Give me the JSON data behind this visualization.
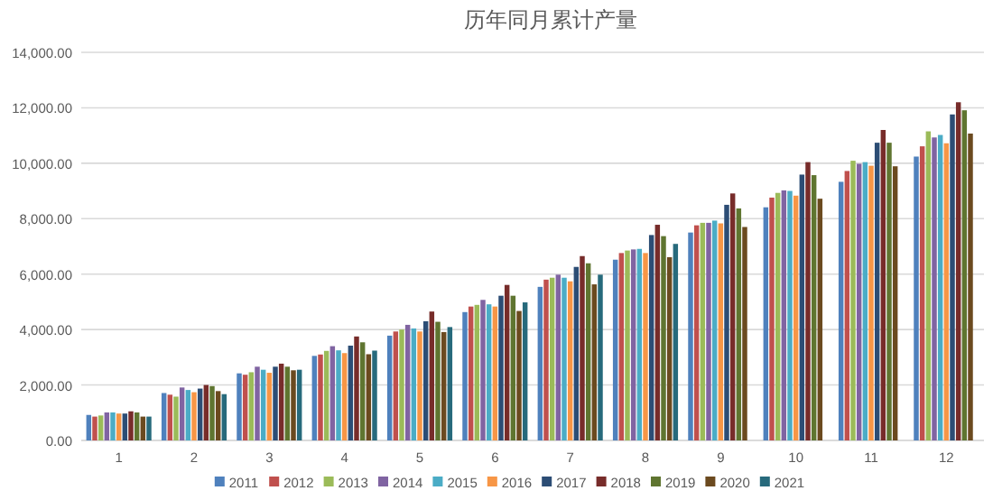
{
  "chart_data": {
    "type": "bar",
    "title": "历年同月累计产量",
    "categories": [
      "1",
      "2",
      "3",
      "4",
      "5",
      "6",
      "7",
      "8",
      "9",
      "10",
      "11",
      "12"
    ],
    "ylim": [
      0,
      14000
    ],
    "yticks": [
      {
        "value": 0,
        "label": "0.00"
      },
      {
        "value": 2000,
        "label": "2,000.00"
      },
      {
        "value": 4000,
        "label": "4,000.00"
      },
      {
        "value": 6000,
        "label": "6,000.00"
      },
      {
        "value": 8000,
        "label": "8,000.00"
      },
      {
        "value": 10000,
        "label": "10,000.00"
      },
      {
        "value": 12000,
        "label": "12,000.00"
      },
      {
        "value": 14000,
        "label": "14,000.00"
      }
    ],
    "grid": "y",
    "legend": "bottom",
    "series": [
      {
        "name": "2011",
        "color": "#4f81bd",
        "values": [
          920,
          1710,
          2420,
          3050,
          3780,
          4630,
          5540,
          6520,
          7500,
          8410,
          9330,
          10240
        ]
      },
      {
        "name": "2012",
        "color": "#c0504d",
        "values": [
          860,
          1650,
          2370,
          3100,
          3930,
          4830,
          5800,
          6760,
          7760,
          8760,
          9720,
          10610
        ]
      },
      {
        "name": "2013",
        "color": "#9bbb59",
        "values": [
          900,
          1580,
          2460,
          3230,
          4000,
          4890,
          5870,
          6850,
          7850,
          8930,
          10090,
          11150
        ]
      },
      {
        "name": "2014",
        "color": "#8064a2",
        "values": [
          1010,
          1910,
          2660,
          3400,
          4170,
          5070,
          5980,
          6890,
          7850,
          9020,
          9980,
          10930
        ]
      },
      {
        "name": "2015",
        "color": "#4bacc6",
        "values": [
          1010,
          1820,
          2550,
          3250,
          4040,
          4910,
          5870,
          6910,
          7930,
          9000,
          10040,
          11020
        ]
      },
      {
        "name": "2016",
        "color": "#f79646",
        "values": [
          970,
          1740,
          2440,
          3150,
          3930,
          4830,
          5740,
          6760,
          7830,
          8830,
          9910,
          10720
        ]
      },
      {
        "name": "2017",
        "color": "#2c4d75",
        "values": [
          970,
          1870,
          2660,
          3420,
          4300,
          5220,
          6260,
          7410,
          8500,
          9590,
          10740,
          11760
        ]
      },
      {
        "name": "2018",
        "color": "#772c2a",
        "values": [
          1050,
          2000,
          2770,
          3750,
          4650,
          5610,
          6650,
          7780,
          8910,
          10040,
          11200,
          12200
        ]
      },
      {
        "name": "2019",
        "color": "#5f7530",
        "values": [
          1010,
          1960,
          2660,
          3540,
          4280,
          5220,
          6390,
          7370,
          8370,
          9570,
          10740,
          11910
        ]
      },
      {
        "name": "2020",
        "color": "#6b4a1f",
        "values": [
          860,
          1780,
          2530,
          3110,
          3910,
          4670,
          5630,
          6610,
          7700,
          8720,
          9890,
          11070
        ]
      },
      {
        "name": "2021",
        "color": "#276a7c",
        "values": [
          860,
          1670,
          2550,
          3240,
          4090,
          4980,
          5980,
          7090,
          null,
          null,
          null,
          null
        ]
      }
    ]
  }
}
